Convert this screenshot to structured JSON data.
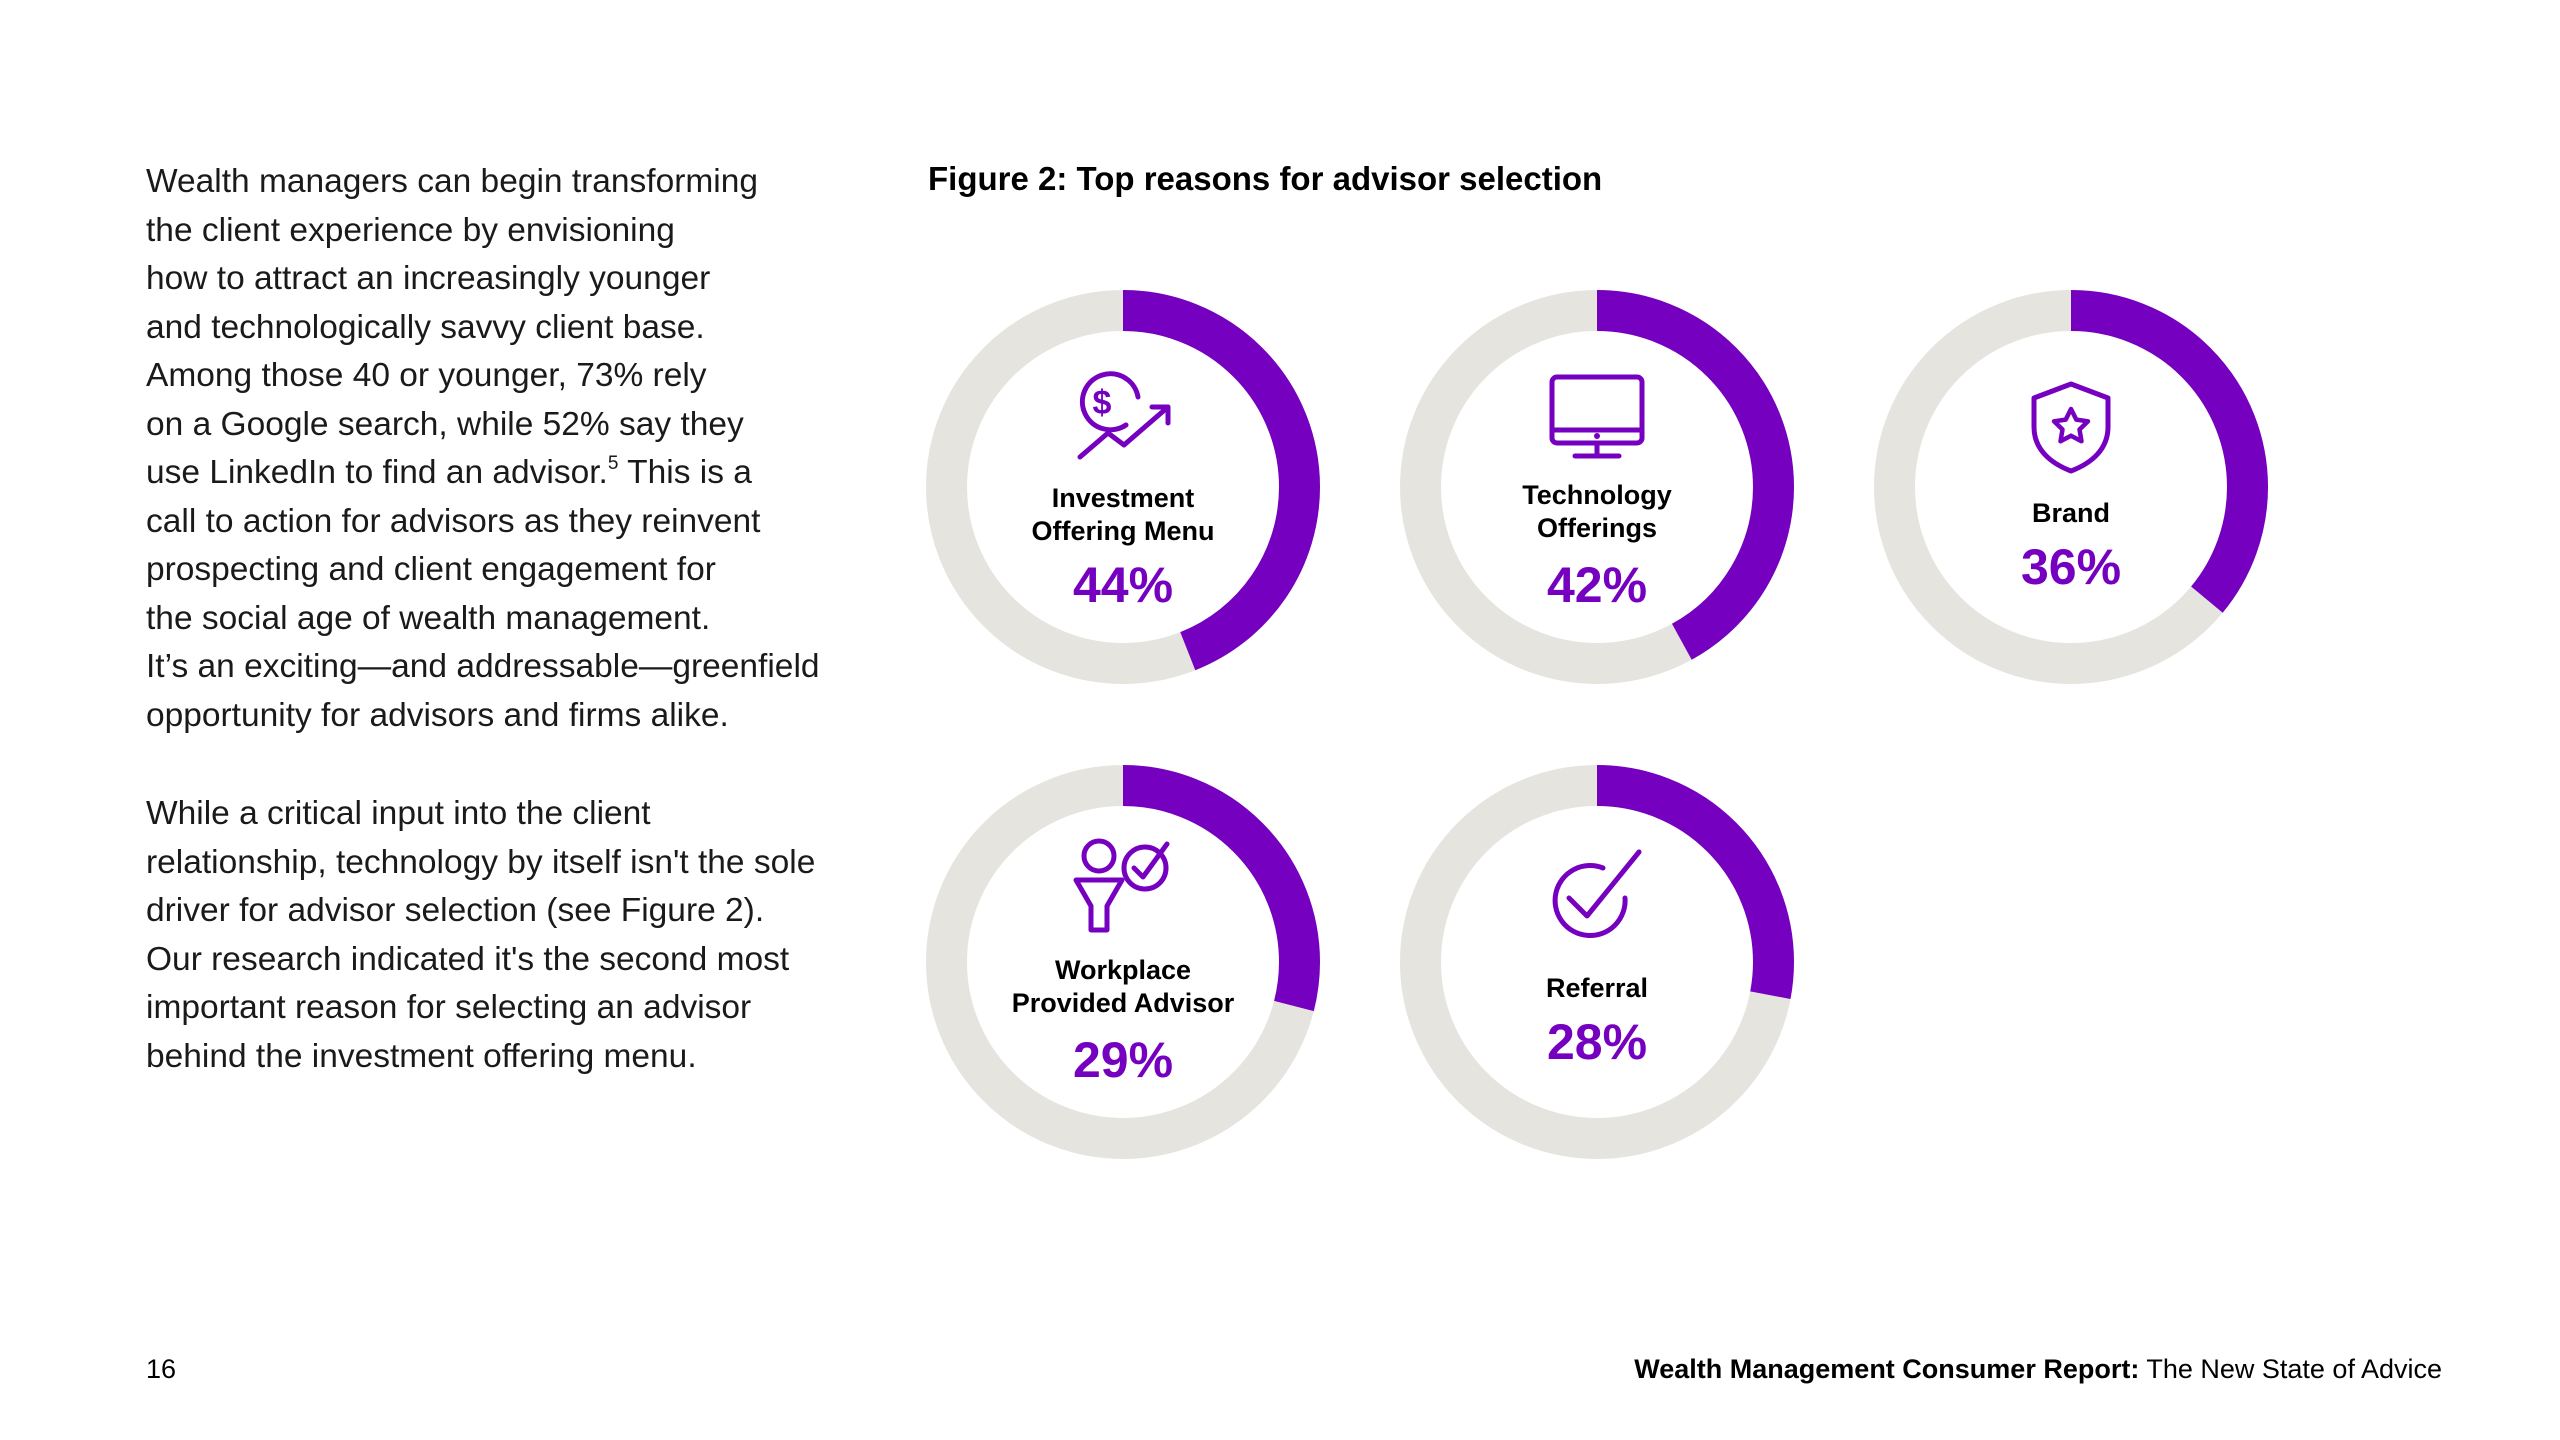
{
  "body": {
    "p1_lines": [
      "Wealth managers can begin transforming",
      "the client experience by envisioning",
      "how to attract an increasingly younger",
      "and technologically savvy client base.",
      "Among those 40 or younger, 73% rely",
      "on a Google search, while 52% say they",
      "use LinkedIn to find an advisor.",
      "call to action for advisors as they reinvent",
      "prospecting and client engagement for",
      "the social age of wealth management.",
      "It’s an exciting—and addressable—greenfield",
      "opportunity for advisors and firms alike."
    ],
    "footnote_ref": "5",
    "p1_line7_tail": " This is a",
    "p2_lines": [
      "While a critical input into the client",
      "relationship, technology by itself isn't the sole",
      "driver for advisor selection (see Figure 2).",
      "Our research indicated it's the second most",
      "important reason for selecting an advisor",
      "behind the investment offering menu."
    ]
  },
  "figure": {
    "title": "Figure 2: Top reasons for advisor selection"
  },
  "chart_data": {
    "type": "donut",
    "title": "Figure 2: Top reasons for advisor selection",
    "unit": "%",
    "items": [
      {
        "label_lines": [
          "Investment",
          "Offering Menu"
        ],
        "value": 44,
        "value_label": "44%",
        "icon": "dollar-growth-icon"
      },
      {
        "label_lines": [
          "Technology",
          "Offerings"
        ],
        "value": 42,
        "value_label": "42%",
        "icon": "monitor-icon"
      },
      {
        "label_lines": [
          "Brand"
        ],
        "value": 36,
        "value_label": "36%",
        "icon": "shield-star-icon"
      },
      {
        "label_lines": [
          "Workplace",
          "Provided Advisor"
        ],
        "value": 29,
        "value_label": "29%",
        "icon": "person-check-icon"
      },
      {
        "label_lines": [
          "Referral"
        ],
        "value": 28,
        "value_label": "28%",
        "icon": "checkmark-circle-icon"
      }
    ]
  },
  "colors": {
    "accent": "#7500C0",
    "track": "#E6E4DE",
    "text": "#000000"
  },
  "footer": {
    "page_number": "16",
    "report_title": "Wealth Management Consumer Report:",
    "report_subtitle": " The New State of Advice"
  }
}
